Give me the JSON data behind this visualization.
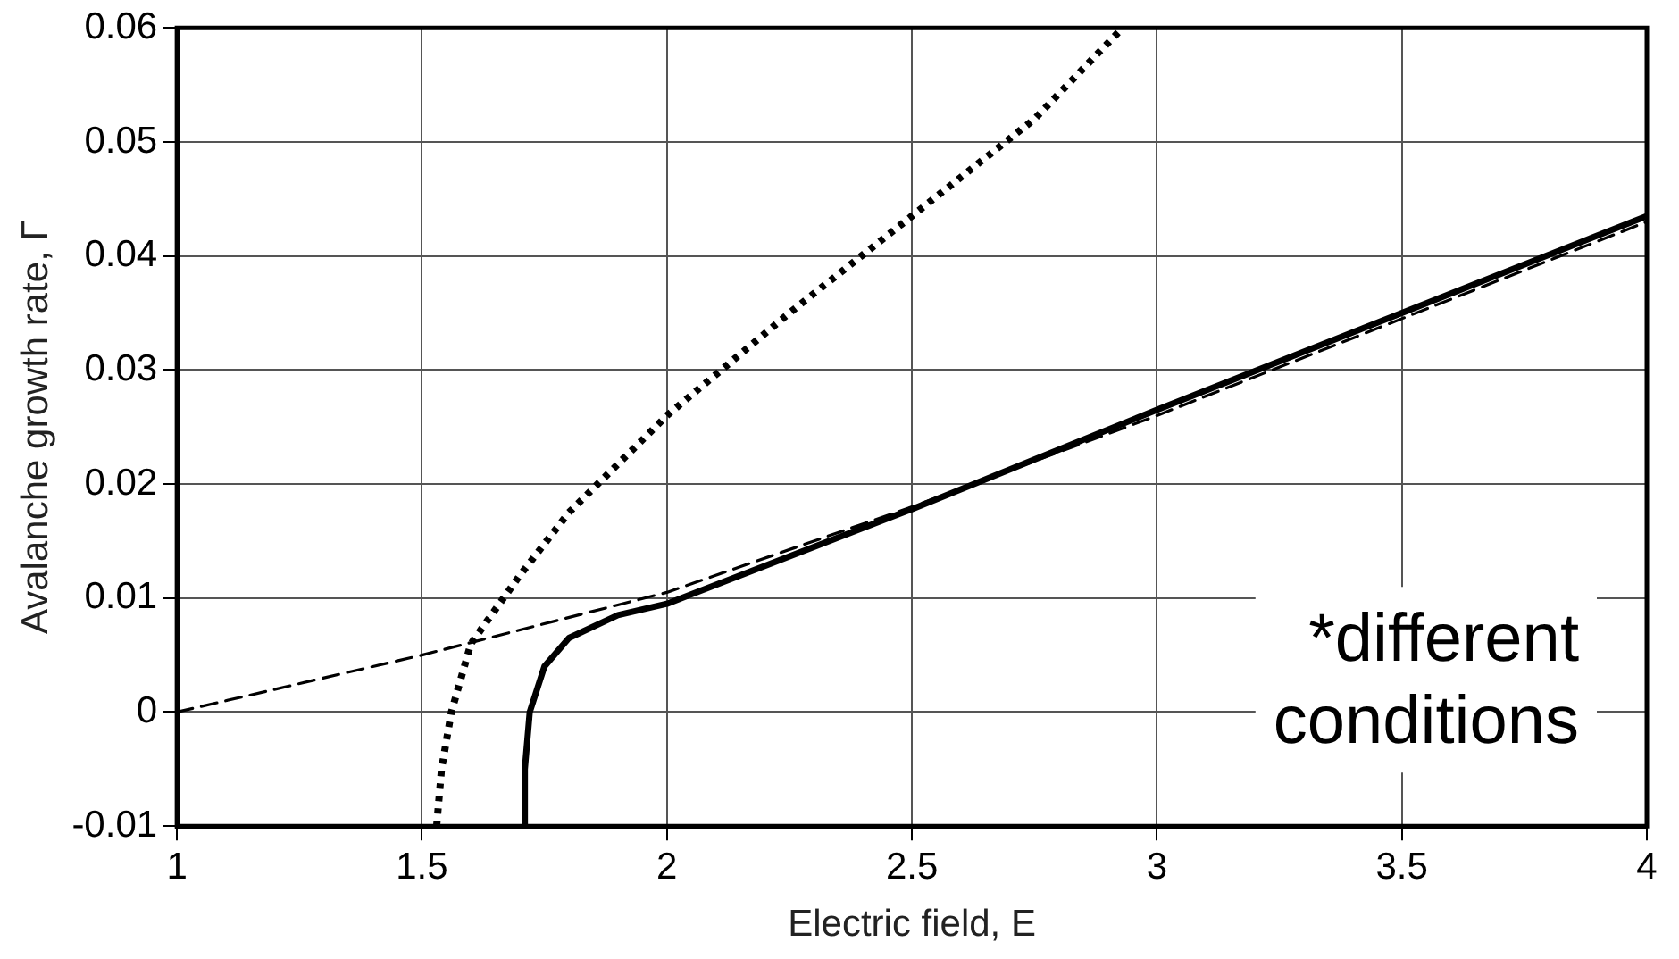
{
  "chart_data": {
    "type": "line",
    "xlabel": "Electric field, E",
    "ylabel": "Avalanche growth rate, Γ",
    "xlim": [
      1,
      4
    ],
    "ylim": [
      -0.01,
      0.06
    ],
    "xticks": [
      1,
      1.5,
      2,
      2.5,
      3,
      3.5,
      4
    ],
    "yticks": [
      -0.01,
      0,
      0.01,
      0.02,
      0.03,
      0.04,
      0.05,
      0.06
    ],
    "grid": true,
    "legend": false,
    "marker": "none",
    "annotations": [
      "*different conditions"
    ],
    "series": [
      {
        "color": "#000000",
        "line_style": "solid",
        "x": [
          1.71,
          1.71,
          1.72,
          1.75,
          1.8,
          1.9,
          2,
          2.5,
          3,
          3.5,
          4
        ],
        "values": [
          -0.01,
          -0.005,
          0,
          0.004,
          0.0065,
          0.0085,
          0.0095,
          0.0178,
          0.0265,
          0.035,
          0.0435
        ]
      },
      {
        "color": "#000000",
        "line_style": "dashed",
        "x": [
          1,
          1.5,
          2,
          2.5,
          3,
          3.5,
          4
        ],
        "values": [
          0,
          0.005,
          0.0105,
          0.018,
          0.026,
          0.0345,
          0.043
        ]
      },
      {
        "color": "#000000",
        "line_style": "dotted",
        "x": [
          1.53,
          1.54,
          1.56,
          1.6,
          1.7,
          1.8,
          2,
          2.25,
          2.5,
          2.75,
          2.93
        ],
        "values": [
          -0.01,
          -0.005,
          0,
          0.006,
          0.012,
          0.0175,
          0.026,
          0.035,
          0.0435,
          0.052,
          0.06
        ]
      }
    ]
  }
}
